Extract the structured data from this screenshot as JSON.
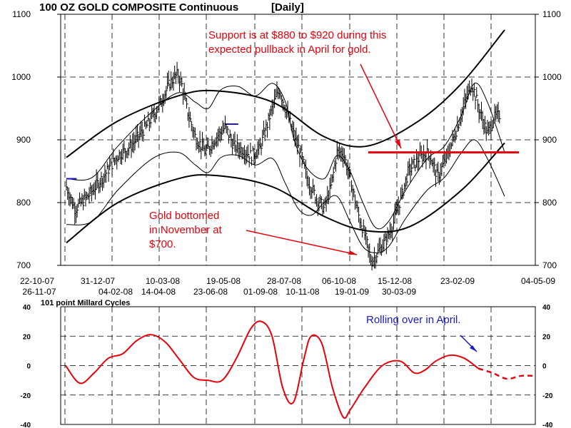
{
  "chart_data": [
    {
      "type": "line",
      "panel": "price",
      "title": "100 OZ GOLD COMPOSITE Continuous",
      "period": "[Daily]",
      "ylim": [
        700,
        1100
      ],
      "y_ticks": [
        700,
        800,
        900,
        1000,
        1100
      ],
      "grid": "dashed",
      "x_ticks_upper": [
        "22-10-07",
        "31-12-07",
        "10-03-08",
        "19-05-08",
        "28-07-08",
        "06-10-08",
        "15-12-08",
        "23-02-09",
        "04-05-09"
      ],
      "x_ticks_lower": [
        "26-11-07",
        "04-02-08",
        "14-04-08",
        "23-06-08",
        "01-09-08",
        "10-11-08",
        "19-01-09",
        "30-03-09"
      ],
      "price_path": [
        [
          0,
          825
        ],
        [
          10,
          790
        ],
        [
          25,
          810
        ],
        [
          45,
          845
        ],
        [
          60,
          875
        ],
        [
          75,
          890
        ],
        [
          95,
          925
        ],
        [
          110,
          960
        ],
        [
          120,
          990
        ],
        [
          130,
          1005
        ],
        [
          135,
          985
        ],
        [
          140,
          950
        ],
        [
          150,
          905
        ],
        [
          162,
          880
        ],
        [
          175,
          905
        ],
        [
          185,
          920
        ],
        [
          195,
          890
        ],
        [
          205,
          885
        ],
        [
          215,
          875
        ],
        [
          225,
          885
        ],
        [
          235,
          930
        ],
        [
          242,
          960
        ],
        [
          248,
          980
        ],
        [
          255,
          950
        ],
        [
          262,
          920
        ],
        [
          272,
          880
        ],
        [
          280,
          840
        ],
        [
          290,
          810
        ],
        [
          300,
          790
        ],
        [
          308,
          825
        ],
        [
          315,
          880
        ],
        [
          322,
          880
        ],
        [
          330,
          840
        ],
        [
          340,
          780
        ],
        [
          348,
          745
        ],
        [
          355,
          705
        ],
        [
          362,
          720
        ],
        [
          372,
          740
        ],
        [
          380,
          765
        ],
        [
          390,
          810
        ],
        [
          398,
          850
        ],
        [
          410,
          870
        ],
        [
          422,
          880
        ],
        [
          432,
          840
        ],
        [
          445,
          880
        ],
        [
          455,
          920
        ],
        [
          465,
          965
        ],
        [
          472,
          990
        ],
        [
          480,
          950
        ],
        [
          490,
          910
        ],
        [
          498,
          935
        ],
        [
          505,
          940
        ]
      ],
      "cycle_bands": [
        {
          "name": "outer-upper",
          "points": [
            [
              0,
              872
            ],
            [
              60,
              930
            ],
            [
              130,
              970
            ],
            [
              175,
              978
            ],
            [
              240,
              960
            ],
            [
              300,
              905
            ],
            [
              350,
              890
            ],
            [
              410,
              930
            ],
            [
              460,
              990
            ],
            [
              510,
              1075
            ]
          ]
        },
        {
          "name": "outer-lower",
          "points": [
            [
              0,
              736
            ],
            [
              60,
              800
            ],
            [
              130,
              838
            ],
            [
              175,
              843
            ],
            [
              240,
              825
            ],
            [
              300,
              778
            ],
            [
              350,
              755
            ],
            [
              400,
              762
            ],
            [
              460,
              820
            ],
            [
              510,
              895
            ]
          ]
        },
        {
          "name": "inner-upper",
          "points": [
            [
              0,
              838
            ],
            [
              30,
              840
            ],
            [
              60,
              890
            ],
            [
              100,
              945
            ],
            [
              130,
              975
            ],
            [
              150,
              960
            ],
            [
              165,
              950
            ],
            [
              180,
              980
            ],
            [
              200,
              985
            ],
            [
              220,
              970
            ],
            [
              240,
              990
            ],
            [
              255,
              960
            ],
            [
              265,
              900
            ],
            [
              280,
              855
            ],
            [
              300,
              838
            ],
            [
              315,
              875
            ],
            [
              330,
              850
            ],
            [
              345,
              800
            ],
            [
              360,
              760
            ],
            [
              375,
              770
            ],
            [
              395,
              820
            ],
            [
              420,
              870
            ],
            [
              440,
              890
            ],
            [
              460,
              940
            ],
            [
              475,
              990
            ],
            [
              490,
              960
            ],
            [
              510,
              880
            ]
          ]
        },
        {
          "name": "inner-lower",
          "points": [
            [
              0,
              765
            ],
            [
              30,
              770
            ],
            [
              60,
              820
            ],
            [
              100,
              870
            ],
            [
              130,
              880
            ],
            [
              150,
              860
            ],
            [
              165,
              848
            ],
            [
              180,
              872
            ],
            [
              200,
              875
            ],
            [
              220,
              860
            ],
            [
              240,
              870
            ],
            [
              255,
              830
            ],
            [
              270,
              790
            ],
            [
              285,
              780
            ],
            [
              300,
              800
            ],
            [
              315,
              810
            ],
            [
              330,
              770
            ],
            [
              345,
              730
            ],
            [
              360,
              720
            ],
            [
              375,
              730
            ],
            [
              395,
              775
            ],
            [
              420,
              820
            ],
            [
              440,
              840
            ],
            [
              460,
              880
            ],
            [
              475,
              900
            ],
            [
              490,
              870
            ],
            [
              510,
              810
            ]
          ]
        }
      ],
      "support_level": 880,
      "annotations": [
        {
          "text": "Support is at $880 to $920 during this expected pullback in April for gold.",
          "color": "#e8000b"
        },
        {
          "text": "Gold bottomed in November at $700.",
          "color": "#e8000b"
        }
      ]
    },
    {
      "type": "line",
      "panel": "oscillator",
      "title": "101 point Millard Cycles",
      "ylim": [
        -40,
        40
      ],
      "y_ticks": [
        -40,
        -20,
        0,
        20,
        40
      ],
      "grid": "dashed",
      "series": [
        {
          "values": [
            [
              0,
              0
            ],
            [
              20,
              -12
            ],
            [
              40,
              -5
            ],
            [
              60,
              5
            ],
            [
              80,
              8
            ],
            [
              100,
              17
            ],
            [
              120,
              21
            ],
            [
              140,
              16
            ],
            [
              160,
              4
            ],
            [
              180,
              -8
            ],
            [
              200,
              -10
            ],
            [
              220,
              -10
            ],
            [
              240,
              5
            ],
            [
              260,
              25
            ],
            [
              275,
              30
            ],
            [
              290,
              20
            ],
            [
              305,
              -15
            ],
            [
              320,
              -25
            ],
            [
              335,
              5
            ],
            [
              345,
              20
            ],
            [
              360,
              15
            ],
            [
              375,
              -15
            ],
            [
              390,
              -35
            ],
            [
              400,
              -30
            ],
            [
              420,
              -15
            ],
            [
              445,
              0
            ],
            [
              470,
              3
            ],
            [
              490,
              -5
            ],
            [
              505,
              -3
            ],
            [
              520,
              3
            ],
            [
              540,
              7
            ],
            [
              560,
              5
            ],
            [
              580,
              -2
            ]
          ]
        },
        {
          "style": "dashed",
          "values": [
            [
              580,
              -2
            ],
            [
              600,
              -5
            ],
            [
              620,
              -9
            ],
            [
              640,
              -7
            ],
            [
              660,
              -7
            ]
          ]
        }
      ],
      "annotations": [
        {
          "text": "Rolling over in April.",
          "color": "#1a1acc"
        }
      ]
    }
  ]
}
